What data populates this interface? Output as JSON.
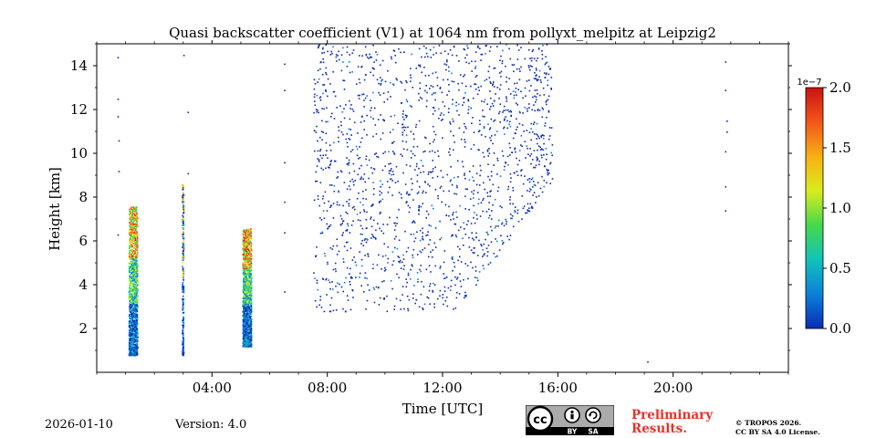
{
  "chart_data": {
    "type": "heatmap",
    "title": "Quasi backscatter coefficient (V1) at 1064 nm from pollyxt_melpitz at Leipzig2",
    "xlabel": "Time [UTC]",
    "ylabel": "Height [km]",
    "xlim_hours": [
      0,
      24
    ],
    "ylim_km": [
      0,
      15
    ],
    "x_ticks": [
      {
        "hour": 4,
        "label": "04:00"
      },
      {
        "hour": 8,
        "label": "08:00"
      },
      {
        "hour": 12,
        "label": "12:00"
      },
      {
        "hour": 16,
        "label": "16:00"
      },
      {
        "hour": 20,
        "label": "20:00"
      }
    ],
    "y_ticks": [
      {
        "value": 2,
        "label": "2"
      },
      {
        "value": 4,
        "label": "4"
      },
      {
        "value": 6,
        "label": "6"
      },
      {
        "value": 8,
        "label": "8"
      },
      {
        "value": 10,
        "label": "10"
      },
      {
        "value": 12,
        "label": "12"
      },
      {
        "value": 14,
        "label": "14"
      }
    ],
    "colorbar": {
      "exponent_label": "1e−7",
      "range": [
        0.0,
        2.0
      ],
      "ticks": [
        {
          "value": 0.0,
          "label": "0.0"
        },
        {
          "value": 0.5,
          "label": "0.5"
        },
        {
          "value": 1.0,
          "label": "1.0"
        },
        {
          "value": 1.5,
          "label": "1.5"
        },
        {
          "value": 2.0,
          "label": "2.0"
        }
      ],
      "colormap": [
        "#0a2bb5",
        "#0a7fd8",
        "#12c4b8",
        "#46d84a",
        "#d8ec1e",
        "#f8b214",
        "#f2541a",
        "#cc1212"
      ]
    },
    "features": [
      {
        "name": "strong-profile-1",
        "hours": [
          1.1,
          1.4
        ],
        "heights_km": [
          0.8,
          7.6
        ],
        "peak_value": 1.8
      },
      {
        "name": "thin-profile-2",
        "hours": [
          2.95,
          3.0
        ],
        "heights_km": [
          0.8,
          8.6
        ],
        "peak_value": 1.4
      },
      {
        "name": "strong-profile-3",
        "hours": [
          5.05,
          5.35
        ],
        "heights_km": [
          1.2,
          6.6
        ],
        "peak_value": 1.9
      },
      {
        "name": "scattered-noise-cloud",
        "hours": [
          7.5,
          15.8
        ],
        "heights_km": [
          2.8,
          15.0
        ],
        "peak_value": 0.3
      }
    ]
  },
  "footer": {
    "date": "2026-01-10",
    "version": "Version: 4.0",
    "preliminary_line1": "Preliminary",
    "preliminary_line2": "Results.",
    "license_line1": "© TROPOS 2026.",
    "license_line2": "CC BY SA 4.0 License.",
    "cc_label": "cc",
    "by_label": "BY",
    "sa_label": "SA"
  }
}
